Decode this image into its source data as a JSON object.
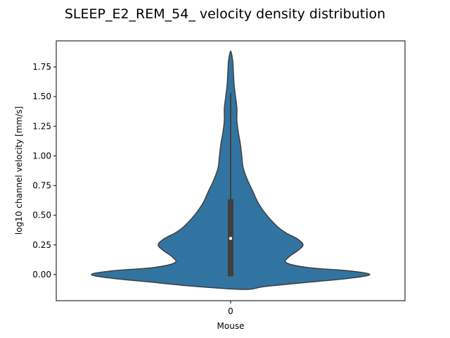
{
  "chart_data": {
    "type": "violin",
    "title": "SLEEP_E2_REM_54_ velocity density distribution",
    "xlabel": "Mouse",
    "ylabel": "log10 channel velocity [mm/s]",
    "categories": [
      "0"
    ],
    "ylim": [
      -0.22,
      1.97
    ],
    "yticks": [
      0.0,
      0.25,
      0.5,
      0.75,
      1.0,
      1.25,
      1.5,
      1.75
    ],
    "ytick_labels": [
      "0.00",
      "0.25",
      "0.50",
      "0.75",
      "1.00",
      "1.25",
      "1.50",
      "1.75"
    ],
    "grid": false,
    "legend": "none",
    "violin": {
      "fill_color": "#3274a1",
      "edge_color": "#3f3f3f",
      "density_profile": [
        [
          -0.125,
          0.1
        ],
        [
          -0.1,
          0.25
        ],
        [
          -0.06,
          0.6
        ],
        [
          -0.03,
          0.86
        ],
        [
          0.0,
          1.0
        ],
        [
          0.03,
          0.86
        ],
        [
          0.06,
          0.55
        ],
        [
          0.1,
          0.4
        ],
        [
          0.15,
          0.42
        ],
        [
          0.2,
          0.48
        ],
        [
          0.25,
          0.52
        ],
        [
          0.3,
          0.48
        ],
        [
          0.35,
          0.4
        ],
        [
          0.4,
          0.34
        ],
        [
          0.5,
          0.26
        ],
        [
          0.6,
          0.2
        ],
        [
          0.7,
          0.16
        ],
        [
          0.8,
          0.12
        ],
        [
          0.9,
          0.09
        ],
        [
          1.0,
          0.08
        ],
        [
          1.1,
          0.07
        ],
        [
          1.2,
          0.055
        ],
        [
          1.3,
          0.045
        ],
        [
          1.4,
          0.045
        ],
        [
          1.5,
          0.035
        ],
        [
          1.6,
          0.025
        ],
        [
          1.7,
          0.02
        ],
        [
          1.8,
          0.015
        ],
        [
          1.885,
          0.0
        ]
      ],
      "whisker_low": -0.015,
      "whisker_high": 1.53,
      "q1": -0.015,
      "q3": 0.635,
      "median": 0.305
    }
  }
}
